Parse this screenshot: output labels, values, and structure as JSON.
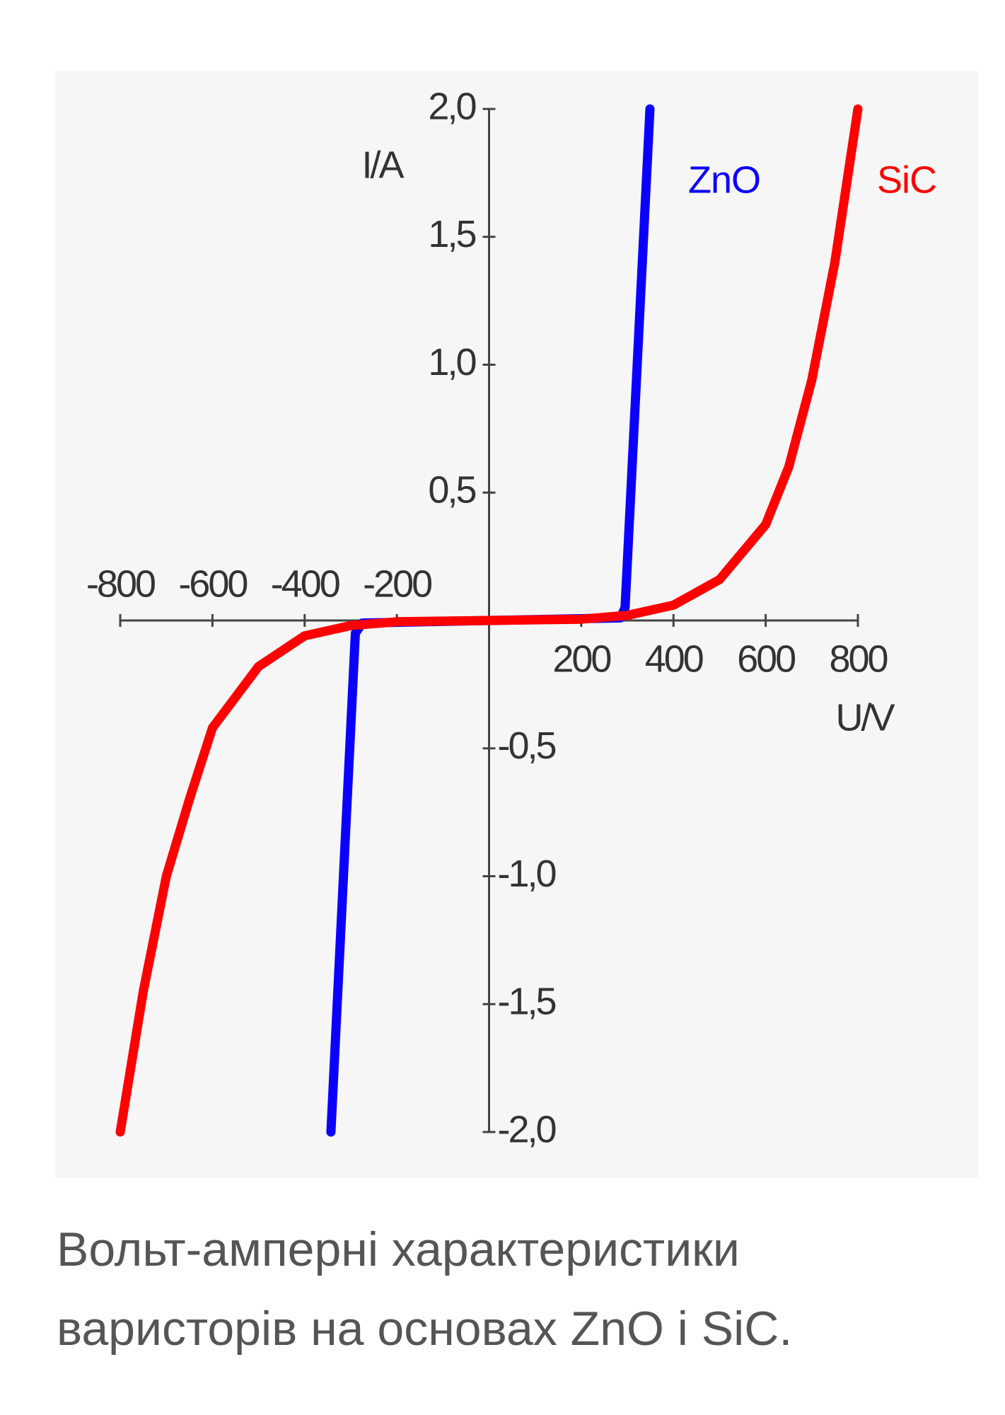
{
  "chart_data": {
    "type": "line",
    "x_label": "U/V",
    "y_label": "I/A",
    "xlim": [
      -800,
      800
    ],
    "ylim": [
      -2,
      2
    ],
    "xticks": [
      -800,
      -600,
      -400,
      -200,
      200,
      400,
      600,
      800
    ],
    "yticks": [
      {
        "value": 2,
        "label": "2,0"
      },
      {
        "value": 1.5,
        "label": "1,5"
      },
      {
        "value": 1,
        "label": "1,0"
      },
      {
        "value": 0.5,
        "label": "0,5"
      },
      {
        "value": -0.5,
        "label": "-0,5"
      },
      {
        "value": -1,
        "label": "-1,0"
      },
      {
        "value": -1.5,
        "label": "-1,5"
      },
      {
        "value": -2,
        "label": "-2,0"
      }
    ],
    "series": [
      {
        "name": "ZnO",
        "color": "#0a00ff",
        "x": [
          -343,
          -290,
          -275,
          0,
          285,
          295,
          349
        ],
        "values": [
          -2,
          -0.05,
          -0.01,
          0,
          0.01,
          0.05,
          2
        ]
      },
      {
        "name": "SiC",
        "color": "#ff0000",
        "x": [
          -800,
          -750,
          -700,
          -650,
          -600,
          -500,
          -400,
          -300,
          -200,
          0,
          200,
          300,
          400,
          500,
          600,
          650,
          700,
          750,
          800
        ],
        "values": [
          -2,
          -1.45,
          -1,
          -0.7,
          -0.42,
          -0.18,
          -0.06,
          -0.02,
          -0.005,
          0,
          0.005,
          0.02,
          0.06,
          0.16,
          0.375,
          0.6,
          0.94,
          1.4,
          2
        ]
      }
    ]
  },
  "caption": "Вольт-амперні характеристики варисторів на основах ZnO і SiC."
}
